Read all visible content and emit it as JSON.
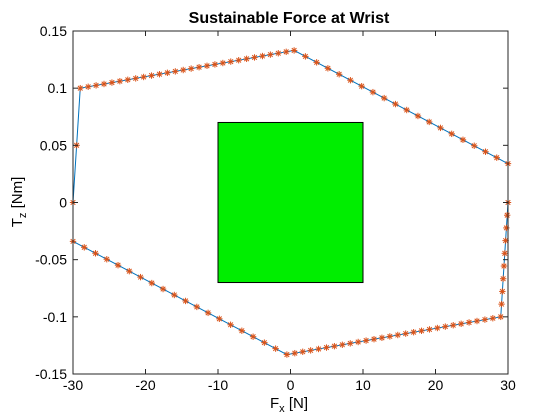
{
  "chart_data": {
    "type": "line",
    "title": "Sustainable Force at Wrist",
    "xlabel": {
      "main": "F",
      "sub": "x",
      "unit": " [N]"
    },
    "ylabel": {
      "main": "T",
      "sub": "z",
      "unit": " [Nm]"
    },
    "xlim": [
      -30,
      30
    ],
    "ylim": [
      -0.15,
      0.15
    ],
    "xticks": [
      -30,
      -20,
      -10,
      0,
      10,
      20,
      30
    ],
    "yticks": [
      -0.15,
      -0.1,
      -0.05,
      0,
      0.05,
      0.1,
      0.15
    ],
    "xtick_labels": [
      "-30",
      "-20",
      "-10",
      "0",
      "10",
      "20",
      "30"
    ],
    "ytick_labels": [
      "-0.15",
      "-0.1",
      "-0.05",
      "0",
      "0.05",
      "0.1",
      "0.15"
    ],
    "grid": false,
    "series": [
      {
        "type": "closed-polyline-with-markers",
        "line_color": "#0072BD",
        "marker_color": "#D95319",
        "marker": "asterisk",
        "vertices": [
          {
            "x": -30,
            "y": 0
          },
          {
            "x": -29,
            "y": 0.1
          },
          {
            "x": 0.5,
            "y": 0.133
          },
          {
            "x": 30,
            "y": 0.034
          },
          {
            "x": 30,
            "y": 0
          },
          {
            "x": 29,
            "y": -0.1
          },
          {
            "x": -0.5,
            "y": -0.133
          },
          {
            "x": -30,
            "y": -0.034
          },
          {
            "x": -30,
            "y": 0
          }
        ],
        "edge_markers": [
          2,
          27,
          19,
          1,
          9,
          27,
          19,
          1
        ]
      }
    ],
    "regions": [
      {
        "type": "rectangle",
        "x": [
          -10,
          10
        ],
        "y": [
          -0.07,
          0.07
        ],
        "fill": "#00EE00",
        "edge": "#000000"
      }
    ]
  }
}
